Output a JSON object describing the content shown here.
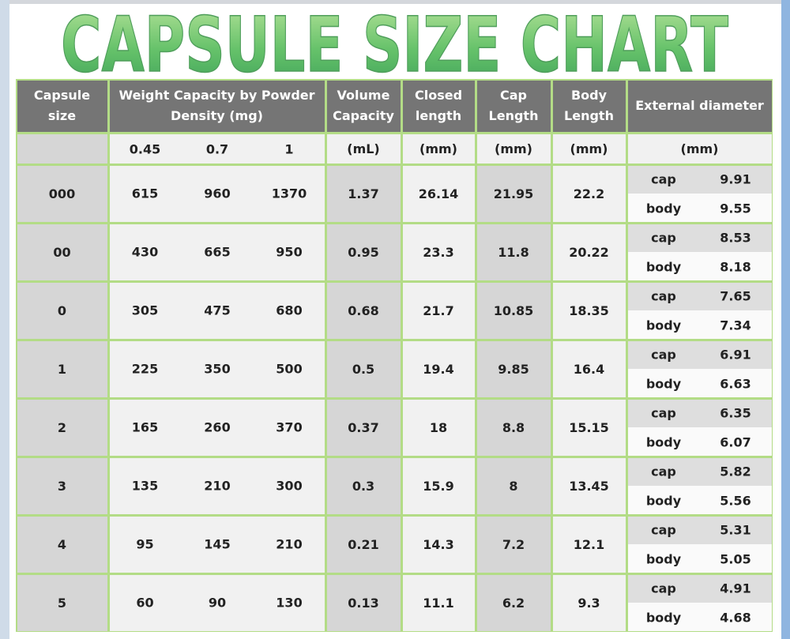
{
  "title": "CAPSULE SIZE CHART",
  "table": {
    "header": [
      "Capsule size",
      "Weight Capacity by Powder Density (mg)",
      "Volume Capacity",
      "Closed length",
      "Cap Length",
      "Body Length",
      "External diameter"
    ],
    "units": [
      "0.45",
      "0.7",
      "1",
      "(mL)",
      "(mm)",
      "(mm)",
      "(mm)",
      "(mm)"
    ],
    "rows": [
      {
        "size": "000",
        "weights": [
          "615",
          "960",
          "1370"
        ],
        "volume": "1.37",
        "closed": "26.14",
        "cap": "21.95",
        "body": "22.2",
        "diameter": [
          [
            "cap",
            "9.91"
          ],
          [
            "body",
            "9.55"
          ]
        ]
      },
      {
        "size": "00",
        "weights": [
          "430",
          "665",
          "950"
        ],
        "volume": "0.95",
        "closed": "23.3",
        "cap": "11.8",
        "body": "20.22",
        "diameter": [
          [
            "cap",
            "8.53"
          ],
          [
            "body",
            "8.18"
          ]
        ]
      },
      {
        "size": "0",
        "weights": [
          "305",
          "475",
          "680"
        ],
        "volume": "0.68",
        "closed": "21.7",
        "cap": "10.85",
        "body": "18.35",
        "diameter": [
          [
            "cap",
            "7.65"
          ],
          [
            "body",
            "7.34"
          ]
        ]
      },
      {
        "size": "1",
        "weights": [
          "225",
          "350",
          "500"
        ],
        "volume": "0.5",
        "closed": "19.4",
        "cap": "9.85",
        "body": "16.4",
        "diameter": [
          [
            "cap",
            "6.91"
          ],
          [
            "body",
            "6.63"
          ]
        ]
      },
      {
        "size": "2",
        "weights": [
          "165",
          "260",
          "370"
        ],
        "volume": "0.37",
        "closed": "18",
        "cap": "8.8",
        "body": "15.15",
        "diameter": [
          [
            "cap",
            "6.35"
          ],
          [
            "body",
            "6.07"
          ]
        ]
      },
      {
        "size": "3",
        "weights": [
          "135",
          "210",
          "300"
        ],
        "volume": "0.3",
        "closed": "15.9",
        "cap": "8",
        "body": "13.45",
        "diameter": [
          [
            "cap",
            "5.82"
          ],
          [
            "body",
            "5.56"
          ]
        ]
      },
      {
        "size": "4",
        "weights": [
          "95",
          "145",
          "210"
        ],
        "volume": "0.21",
        "closed": "14.3",
        "cap": "7.2",
        "body": "12.1",
        "diameter": [
          [
            "cap",
            "5.31"
          ],
          [
            "body",
            "5.05"
          ]
        ]
      },
      {
        "size": "5",
        "weights": [
          "60",
          "90",
          "130"
        ],
        "volume": "0.13",
        "closed": "11.1",
        "cap": "6.2",
        "body": "9.3",
        "diameter": [
          [
            "cap",
            "4.91"
          ],
          [
            "body",
            "4.68"
          ]
        ]
      }
    ]
  }
}
